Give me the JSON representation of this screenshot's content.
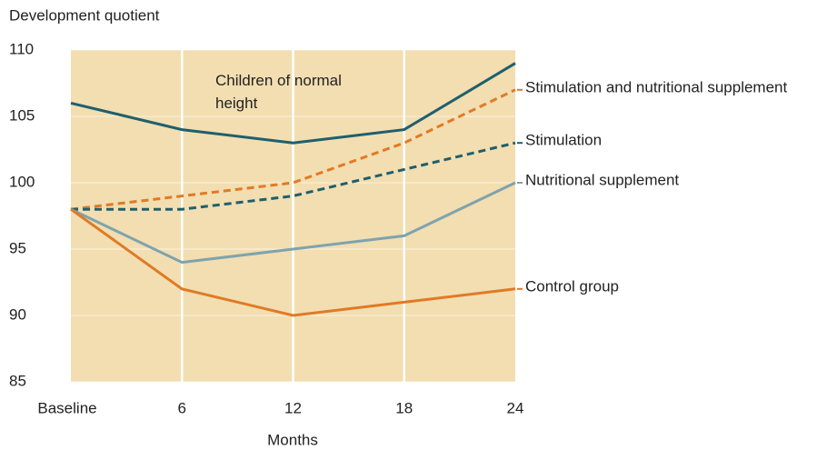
{
  "chart_data": {
    "type": "line",
    "y_label": "Development quotient",
    "x_label": "Months",
    "categories": [
      "Baseline",
      "6",
      "12",
      "18",
      "24"
    ],
    "ylim": [
      85,
      110
    ],
    "yticks": [
      85,
      90,
      95,
      100,
      105,
      110
    ],
    "grid": true,
    "background": "#f2deb1",
    "series": [
      {
        "name": "Children of normal height",
        "color": "#1f5f6c",
        "dashed": false,
        "values": [
          106,
          104,
          103,
          104,
          109
        ]
      },
      {
        "name": "Stimulation and nutritional supplement",
        "color": "#e07a26",
        "dashed": true,
        "values": [
          98,
          99,
          100,
          103,
          107
        ]
      },
      {
        "name": "Stimulation",
        "color": "#1f5f6c",
        "dashed": true,
        "values": [
          98,
          98,
          99,
          101,
          103
        ]
      },
      {
        "name": "Nutritional supplement",
        "color": "#7fa3ad",
        "dashed": false,
        "values": [
          98,
          94,
          95,
          96,
          100
        ]
      },
      {
        "name": "Control group",
        "color": "#e07a26",
        "dashed": false,
        "values": [
          98,
          92,
          90,
          91,
          92
        ]
      }
    ]
  }
}
